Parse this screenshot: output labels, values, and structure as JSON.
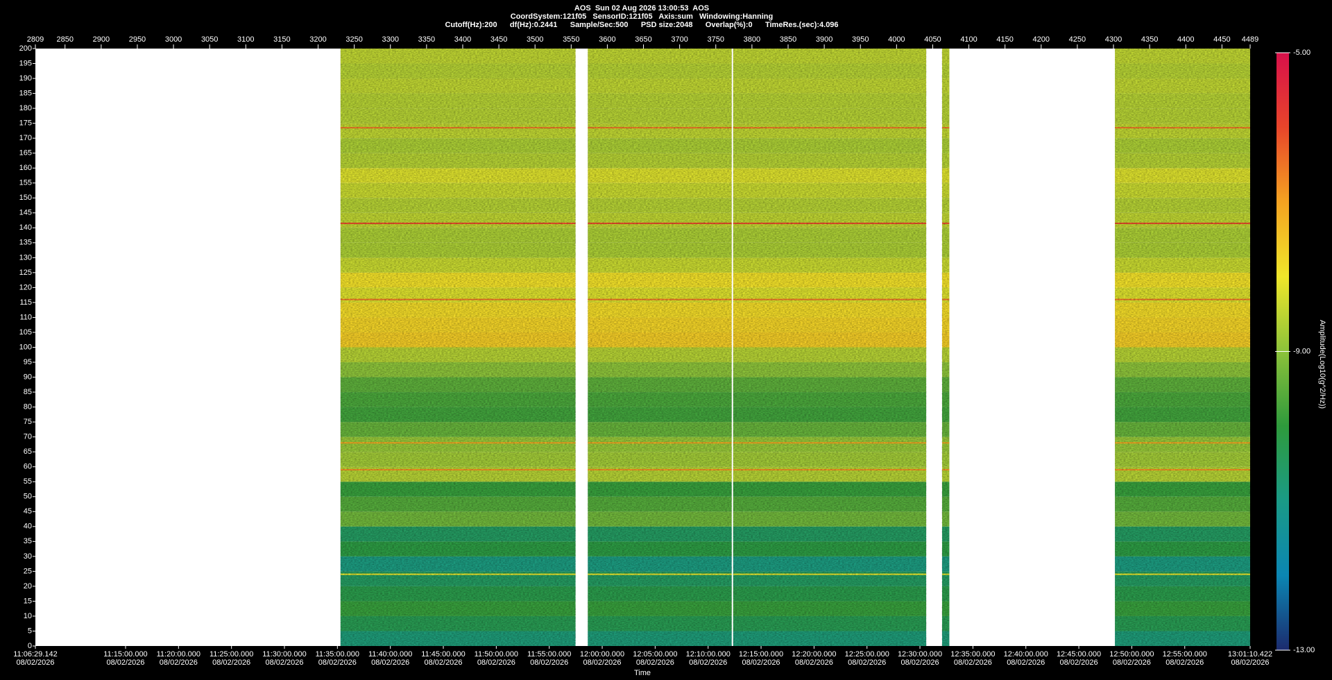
{
  "chart_data": {
    "type": "spectrogram",
    "header": [
      "AOS  Sun 02 Aug 2026 13:00:53  AOS",
      "CoordSystem:121f05   SensorID:121f05   Axis:sum   Windowing:Hanning",
      "Cutoff(Hz):200      df(Hz):0.2441      Sample/Sec:500      PSD size:2048      Overlap(%):0      TimeRes.(sec):4.096"
    ],
    "xlabel": "Time",
    "colorbar_label": "Amplitude(Log10(g^2/Hz))",
    "xlim": [
      2809,
      4489
    ],
    "xticks": [
      2809,
      2850,
      2900,
      2950,
      3000,
      3050,
      3100,
      3150,
      3200,
      3250,
      3300,
      3350,
      3400,
      3450,
      3500,
      3550,
      3600,
      3650,
      3700,
      3750,
      3800,
      3850,
      3900,
      3950,
      4000,
      4050,
      4100,
      4150,
      4200,
      4250,
      4300,
      4350,
      4400,
      4450,
      4489
    ],
    "ylim": [
      0,
      200
    ],
    "yticks": [
      0,
      5,
      10,
      15,
      20,
      25,
      30,
      35,
      40,
      45,
      50,
      55,
      60,
      65,
      70,
      75,
      80,
      85,
      90,
      95,
      100,
      105,
      110,
      115,
      120,
      125,
      130,
      135,
      140,
      145,
      150,
      155,
      160,
      165,
      170,
      175,
      180,
      185,
      190,
      195,
      200
    ],
    "time_lim": [
      "11:06:29.142",
      "13:01:10.422"
    ],
    "time_ticks": [
      {
        "time": "11:06:29.142",
        "date": "08/02/2026"
      },
      {
        "time": "11:15:00.000",
        "date": "08/02/2026"
      },
      {
        "time": "11:20:00.000",
        "date": "08/02/2026"
      },
      {
        "time": "11:25:00.000",
        "date": "08/02/2026"
      },
      {
        "time": "11:30:00.000",
        "date": "08/02/2026"
      },
      {
        "time": "11:35:00.000",
        "date": "08/02/2026"
      },
      {
        "time": "11:40:00.000",
        "date": "08/02/2026"
      },
      {
        "time": "11:45:00.000",
        "date": "08/02/2026"
      },
      {
        "time": "11:50:00.000",
        "date": "08/02/2026"
      },
      {
        "time": "11:55:00.000",
        "date": "08/02/2026"
      },
      {
        "time": "12:00:00.000",
        "date": "08/02/2026"
      },
      {
        "time": "12:05:00.000",
        "date": "08/02/2026"
      },
      {
        "time": "12:10:00.000",
        "date": "08/02/2026"
      },
      {
        "time": "12:15:00.000",
        "date": "08/02/2026"
      },
      {
        "time": "12:20:00.000",
        "date": "08/02/2026"
      },
      {
        "time": "12:25:00.000",
        "date": "08/02/2026"
      },
      {
        "time": "12:30:00.000",
        "date": "08/02/2026"
      },
      {
        "time": "12:35:00.000",
        "date": "08/02/2026"
      },
      {
        "time": "12:40:00.000",
        "date": "08/02/2026"
      },
      {
        "time": "12:45:00.000",
        "date": "08/02/2026"
      },
      {
        "time": "12:50:00.000",
        "date": "08/02/2026"
      },
      {
        "time": "12:55:00.000",
        "date": "08/02/2026"
      },
      {
        "time": "13:01:10.422",
        "date": "08/02/2026"
      }
    ],
    "segments": [
      [
        3231,
        3556
      ],
      [
        3573,
        3772
      ],
      [
        3774,
        4041
      ],
      [
        4063,
        4073
      ],
      [
        4302,
        4489
      ]
    ],
    "frequencies": [
      0,
      5,
      10,
      15,
      20,
      25,
      30,
      35,
      40,
      45,
      50,
      55,
      60,
      65,
      70,
      75,
      80,
      85,
      90,
      95,
      100,
      105,
      110,
      115,
      120,
      125,
      130,
      135,
      140,
      145,
      150,
      155,
      160,
      165,
      170,
      175,
      180,
      185,
      190,
      195,
      200
    ],
    "amplitude": [
      -10.8,
      -10.3,
      -9.9,
      -10.2,
      -10.5,
      -10.9,
      -10.1,
      -10.5,
      -9.3,
      -9.6,
      -9.9,
      -8.6,
      -8.8,
      -8.9,
      -9.4,
      -9.8,
      -9.7,
      -9.5,
      -9.0,
      -8.6,
      -7.6,
      -7.7,
      -7.8,
      -8.2,
      -7.9,
      -8.4,
      -8.7,
      -8.7,
      -8.5,
      -8.6,
      -8.4,
      -8.2,
      -8.6,
      -8.7,
      -8.5,
      -8.6,
      -8.6,
      -8.5,
      -8.6,
      -8.5
    ],
    "peak_freqs": [
      173.5,
      141.5,
      116,
      68,
      59,
      24
    ],
    "peak_amps": [
      -6.5,
      -6,
      -6.5,
      -7,
      -6.8,
      -8
    ],
    "clim": [
      -13,
      -5
    ],
    "cticks": [
      {
        "value": -5,
        "label": "-5.00"
      },
      {
        "value": -9,
        "label": "-9.00"
      },
      {
        "value": -13,
        "label": "-13.00"
      }
    ],
    "colormap": [
      {
        "value": -13,
        "color": "#1c2b6e"
      },
      {
        "value": -12,
        "color": "#0b86b3"
      },
      {
        "value": -11,
        "color": "#1a9a86"
      },
      {
        "value": -10,
        "color": "#2e9a3c"
      },
      {
        "value": -9,
        "color": "#8cc23a"
      },
      {
        "value": -8,
        "color": "#efe62a"
      },
      {
        "value": -7,
        "color": "#f4a321"
      },
      {
        "value": -6,
        "color": "#e8452a"
      },
      {
        "value": -5,
        "color": "#d8104a"
      }
    ]
  }
}
